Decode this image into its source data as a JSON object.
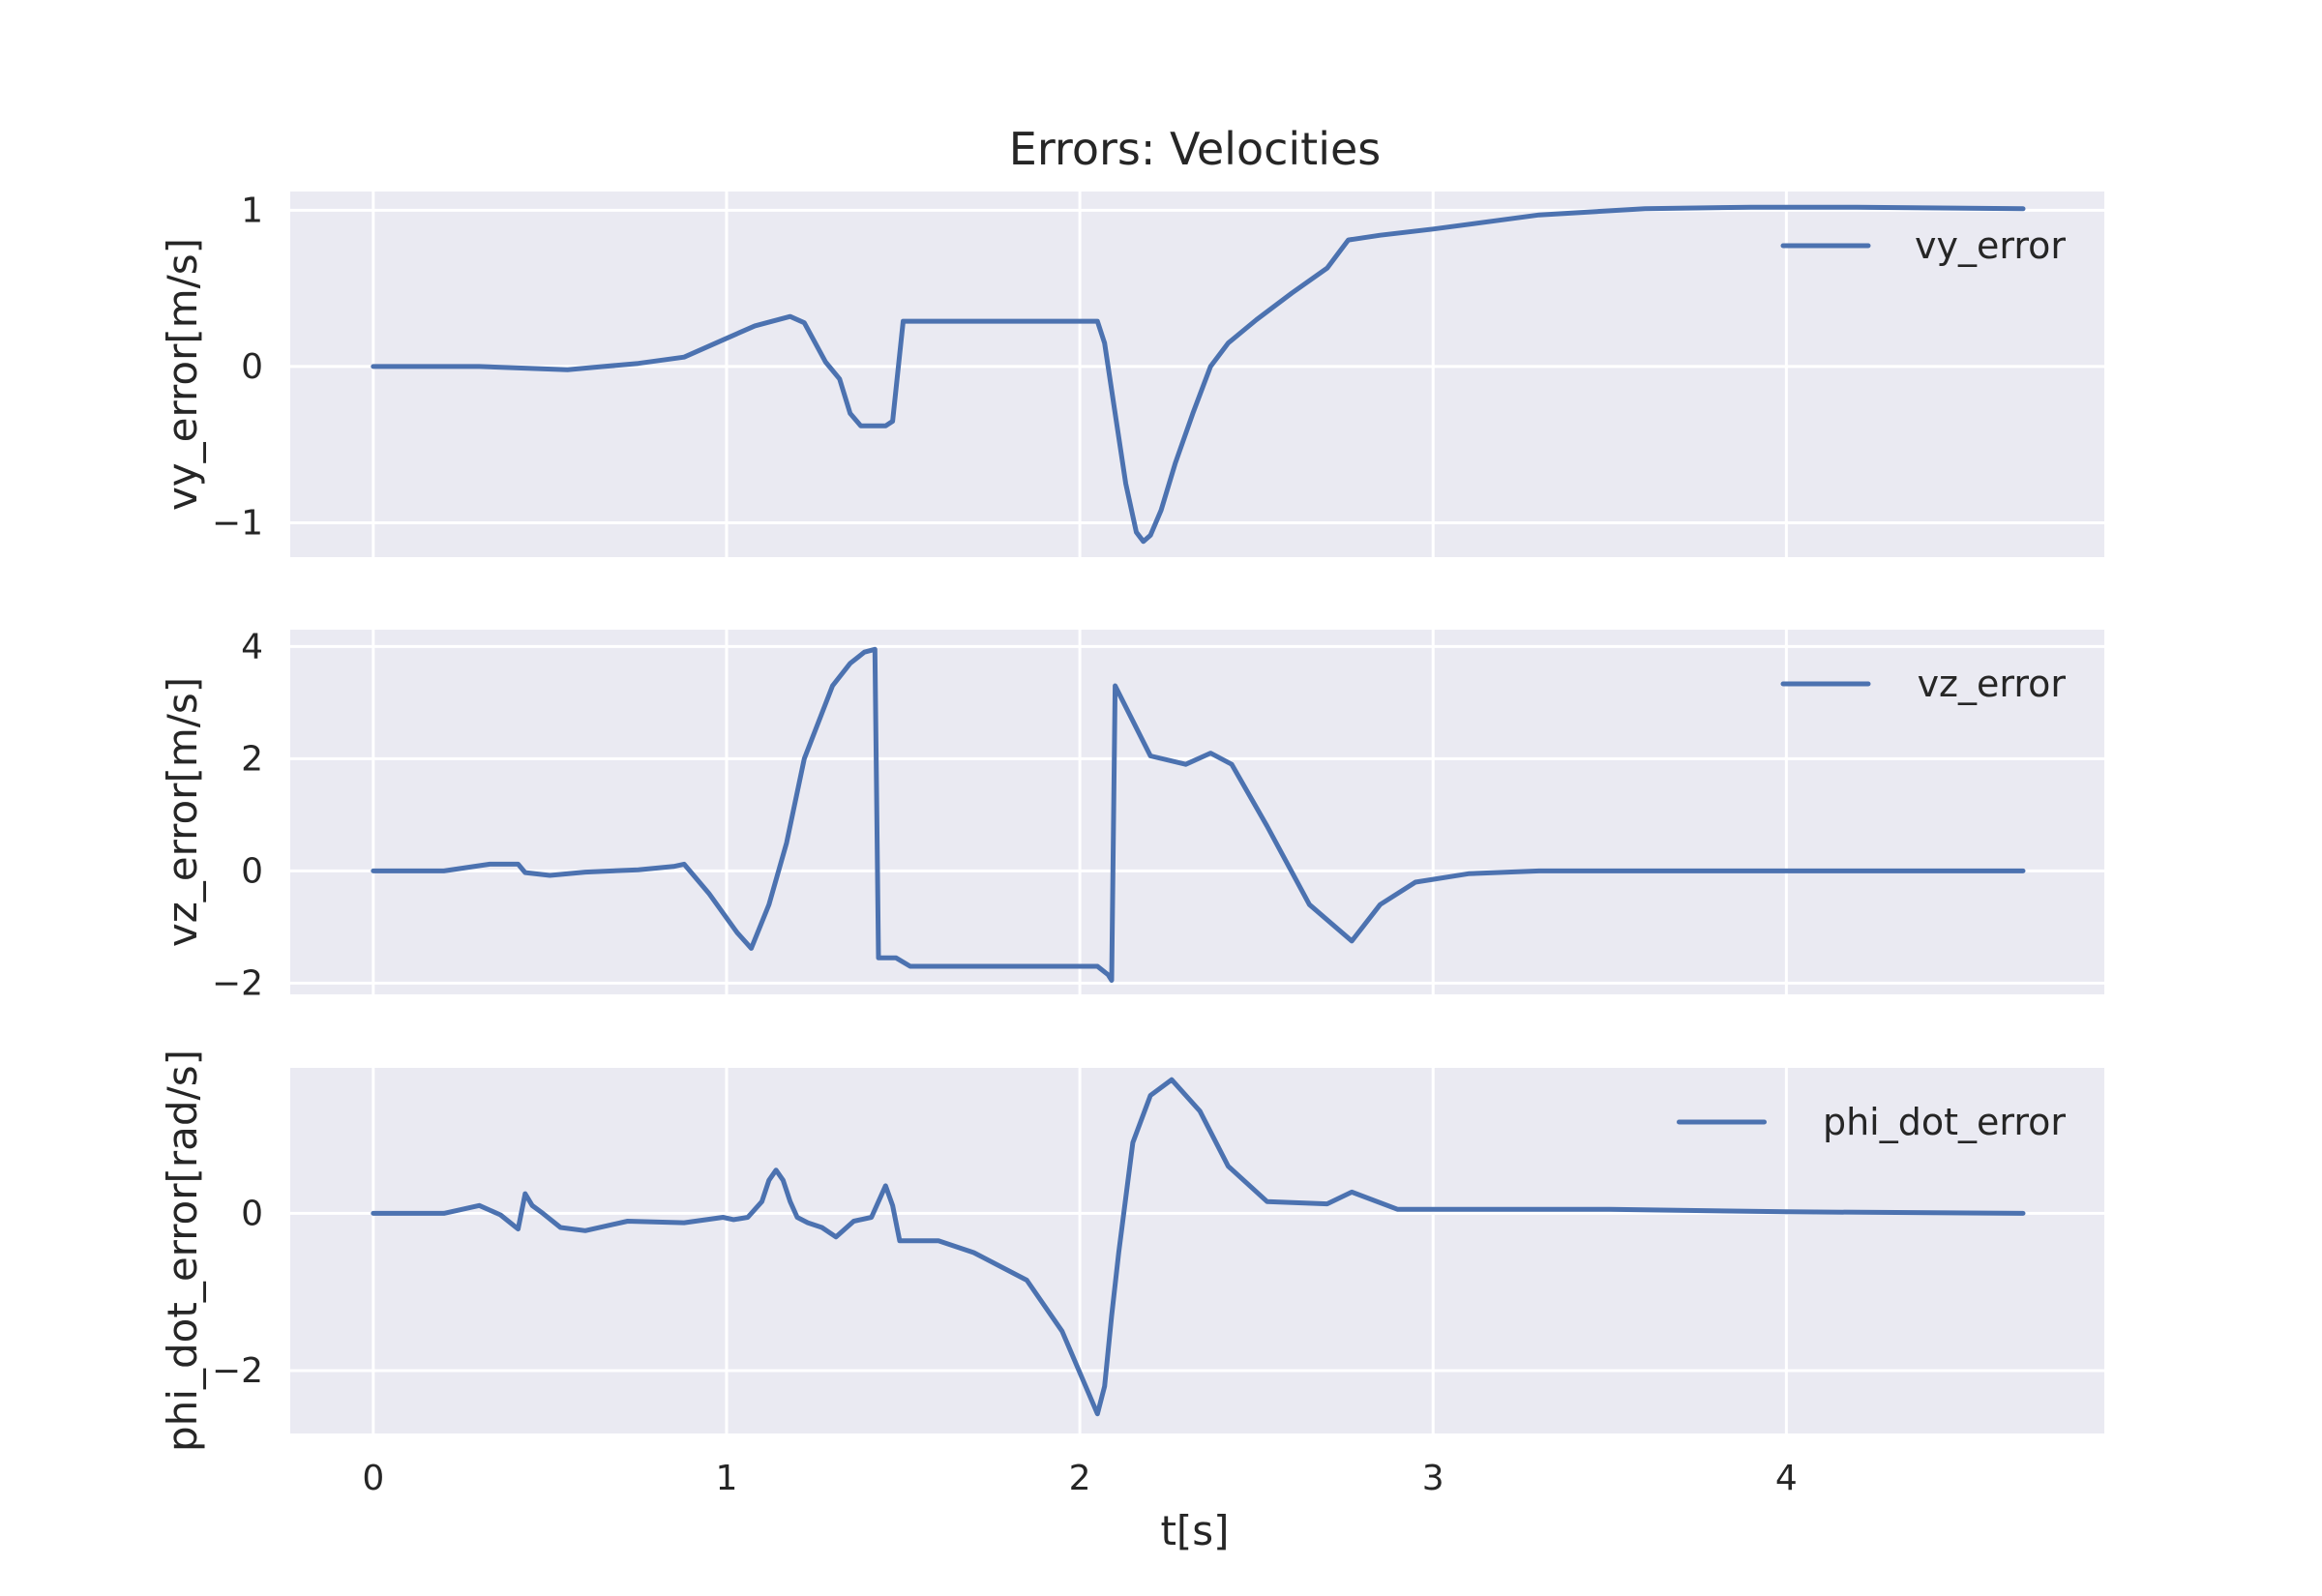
{
  "chart_data": {
    "type": "line",
    "title": "Errors: Velocities",
    "xlabel": "t[s]",
    "xlim": [
      -0.235,
      4.9
    ],
    "xticks": [
      0,
      1,
      2,
      3,
      4
    ],
    "grid": true,
    "line_color": "#4c72b0",
    "panel_bg": "#eaeaf2",
    "legend_position": "upper right",
    "panels": [
      {
        "ylabel": "vy_error[m/s]",
        "ylim": [
          -1.22,
          1.12
        ],
        "yticks": [
          -1,
          0,
          1
        ],
        "ytick_labels": [
          "−1",
          "0",
          "1"
        ],
        "series": [
          {
            "name": "vy_error",
            "x": [
              0,
              0.3,
              0.55,
              0.75,
              0.88,
              1.0,
              1.08,
              1.13,
              1.18,
              1.22,
              1.28,
              1.32,
              1.35,
              1.38,
              1.42,
              1.45,
              1.47,
              1.5,
              2.05,
              2.07,
              2.1,
              2.13,
              2.16,
              2.18,
              2.2,
              2.23,
              2.27,
              2.32,
              2.37,
              2.42,
              2.5,
              2.6,
              2.7,
              2.76,
              2.85,
              3.0,
              3.3,
              3.6,
              3.9,
              4.2,
              4.67
            ],
            "y": [
              0,
              0,
              -0.02,
              0.02,
              0.06,
              0.18,
              0.26,
              0.29,
              0.32,
              0.28,
              0.03,
              -0.08,
              -0.3,
              -0.38,
              -0.38,
              -0.38,
              -0.35,
              0.29,
              0.29,
              0.15,
              -0.3,
              -0.75,
              -1.06,
              -1.12,
              -1.08,
              -0.92,
              -0.62,
              -0.3,
              0.0,
              0.15,
              0.3,
              0.47,
              0.63,
              0.81,
              0.84,
              0.88,
              0.97,
              1.01,
              1.02,
              1.02,
              1.01
            ]
          }
        ]
      },
      {
        "ylabel": "vz_error[m/s]",
        "ylim": [
          -2.2,
          4.3
        ],
        "yticks": [
          -2,
          0,
          2,
          4
        ],
        "ytick_labels": [
          "−2",
          "0",
          "2",
          "4"
        ],
        "series": [
          {
            "name": "vz_error",
            "x": [
              0,
              0.2,
              0.33,
              0.41,
              0.43,
              0.5,
              0.6,
              0.75,
              0.85,
              0.88,
              0.95,
              1.03,
              1.07,
              1.12,
              1.17,
              1.22,
              1.3,
              1.35,
              1.39,
              1.42,
              1.43,
              1.45,
              1.48,
              1.52,
              2.05,
              2.08,
              2.09,
              2.1,
              2.14,
              2.2,
              2.3,
              2.37,
              2.43,
              2.53,
              2.65,
              2.77,
              2.85,
              2.95,
              3.1,
              3.3,
              3.6,
              4.0,
              4.67
            ],
            "y": [
              0,
              0,
              0.12,
              0.12,
              -0.03,
              -0.08,
              -0.02,
              0.02,
              0.08,
              0.12,
              -0.4,
              -1.1,
              -1.38,
              -0.6,
              0.5,
              2.0,
              3.3,
              3.7,
              3.9,
              3.95,
              -1.55,
              -1.55,
              -1.55,
              -1.7,
              -1.7,
              -1.85,
              -1.95,
              3.3,
              2.8,
              2.05,
              1.9,
              2.1,
              1.9,
              0.8,
              -0.6,
              -1.25,
              -0.6,
              -0.2,
              -0.05,
              0.0,
              0.0,
              0.0,
              0.0
            ]
          }
        ]
      },
      {
        "ylabel": "phi_dot_error[rad/s]",
        "ylim": [
          -2.8,
          1.85
        ],
        "yticks": [
          -2,
          0
        ],
        "ytick_labels": [
          "−2",
          "0"
        ],
        "series": [
          {
            "name": "phi_dot_error",
            "x": [
              0,
              0.2,
              0.3,
              0.36,
              0.41,
              0.43,
              0.45,
              0.48,
              0.53,
              0.6,
              0.72,
              0.88,
              0.99,
              1.02,
              1.06,
              1.1,
              1.12,
              1.14,
              1.16,
              1.18,
              1.2,
              1.23,
              1.27,
              1.31,
              1.36,
              1.41,
              1.45,
              1.47,
              1.49,
              1.51,
              1.6,
              1.7,
              1.85,
              1.95,
              2.05,
              2.07,
              2.09,
              2.11,
              2.15,
              2.2,
              2.26,
              2.34,
              2.42,
              2.53,
              2.7,
              2.77,
              2.9,
              3.1,
              3.5,
              4.0,
              4.67
            ],
            "y": [
              0,
              0,
              0.1,
              -0.02,
              -0.2,
              0.25,
              0.1,
              0.0,
              -0.18,
              -0.22,
              -0.1,
              -0.12,
              -0.05,
              -0.08,
              -0.05,
              0.15,
              0.42,
              0.55,
              0.42,
              0.15,
              -0.05,
              -0.12,
              -0.18,
              -0.3,
              -0.1,
              -0.05,
              0.35,
              0.1,
              -0.35,
              -0.35,
              -0.35,
              -0.5,
              -0.85,
              -1.5,
              -2.55,
              -2.2,
              -1.3,
              -0.5,
              0.9,
              1.5,
              1.7,
              1.3,
              0.6,
              0.15,
              0.12,
              0.27,
              0.05,
              0.05,
              0.05,
              0.02,
              0.0
            ]
          }
        ]
      }
    ]
  }
}
